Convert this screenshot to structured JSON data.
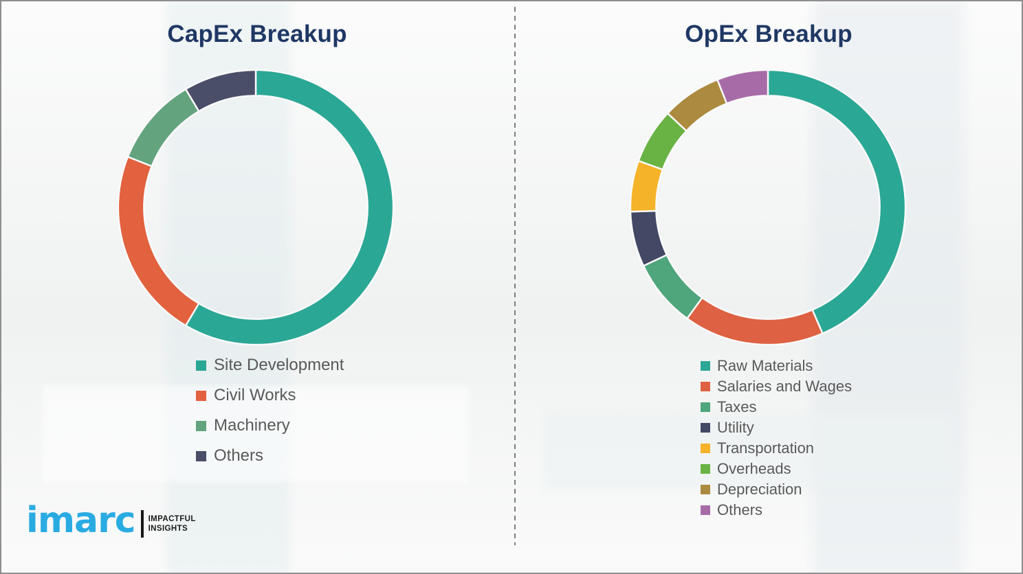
{
  "logo": {
    "brand": "imarc",
    "brand_color": "#29abe2",
    "tagline_line1": "IMPACTFUL",
    "tagline_line2": "INSIGHTS"
  },
  "styles": {
    "title_color": "#1f3864",
    "legend_text_color": "#595959",
    "background_color": "#f4f5f4",
    "divider_color": "#7c7c7c"
  },
  "chart_data": [
    {
      "type": "pie",
      "subtype": "donut",
      "title": "CapEx Breakup",
      "labels": [
        "Site Development",
        "Civil Works",
        "Machinery",
        "Others"
      ],
      "values": [
        58.5,
        22.5,
        10.5,
        8.5
      ],
      "value_unit": "% (estimated from arc angles, no data labels shown)",
      "colors": [
        "#2ba795",
        "#e2613e",
        "#63a47e",
        "#4a4e68"
      ],
      "start_angle_deg": 0,
      "direction": "clockwise",
      "legend_position": "below-left",
      "grid": false
    },
    {
      "type": "pie",
      "subtype": "donut",
      "title": "OpEx Breakup",
      "labels": [
        "Raw Materials",
        "Salaries and Wages",
        "Taxes",
        "Utility",
        "Transportation",
        "Overheads",
        "Depreciation",
        "Others"
      ],
      "values": [
        43.5,
        16.5,
        8,
        6.5,
        6,
        6.5,
        7,
        6
      ],
      "value_unit": "% (estimated from arc angles, no data labels shown)",
      "colors": [
        "#2ba795",
        "#dd6142",
        "#4fa57c",
        "#434964",
        "#f5b32a",
        "#69b345",
        "#ac8a3f",
        "#a76ca7"
      ],
      "start_angle_deg": 0,
      "direction": "clockwise",
      "legend_position": "below-left",
      "grid": false
    }
  ]
}
